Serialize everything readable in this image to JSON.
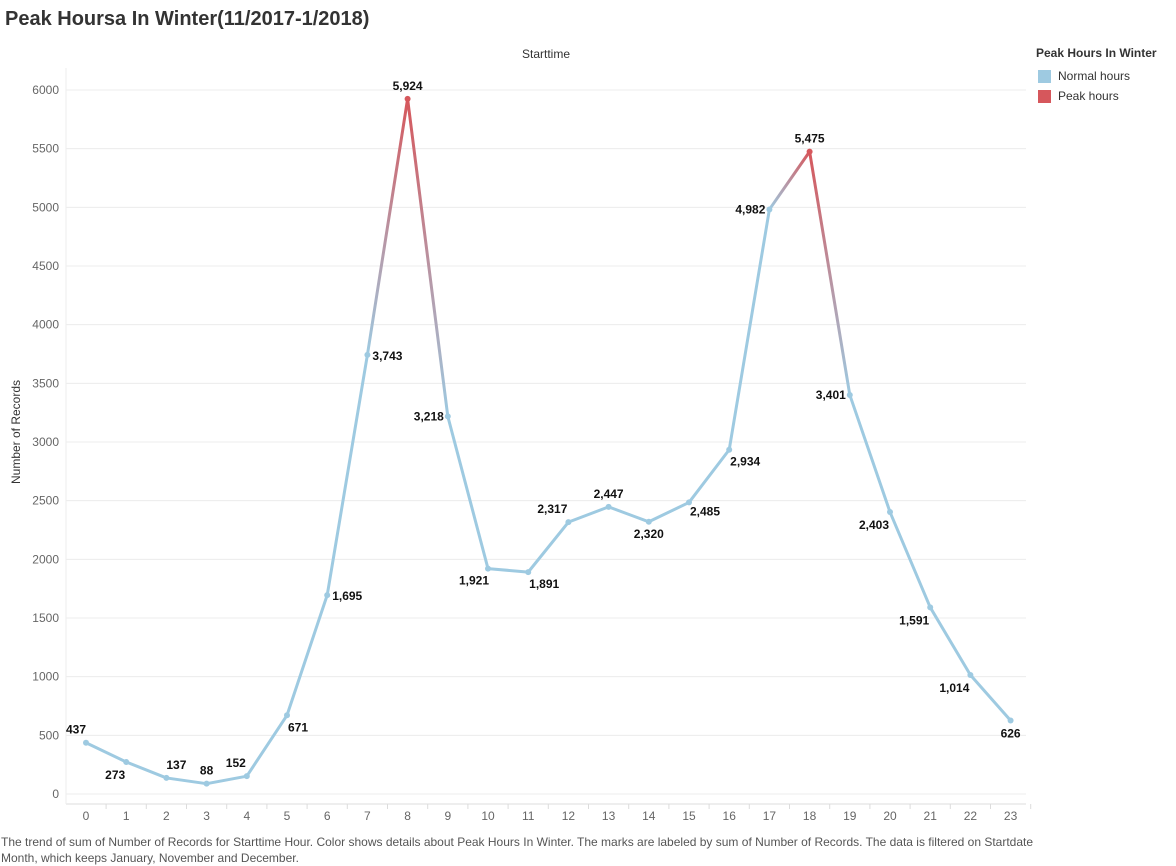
{
  "title": "Peak Hoursa In Winter(11/2017-1/2018)",
  "legend": {
    "title": "Peak Hours In Winter",
    "items": [
      {
        "label": "Normal hours",
        "color": "#9ecae1"
      },
      {
        "label": "Peak hours",
        "color": "#d6575c"
      }
    ]
  },
  "caption": "The trend of sum of Number of Records for Starttime Hour.  Color shows details about Peak Hours In Winter.  The marks are labeled by sum of Number of Records. The data is filtered on Startdate Month, which keeps January, November and December.",
  "chart_data": {
    "type": "line",
    "title": "Peak Hoursa In Winter(11/2017-1/2018)",
    "xlabel": "Starttime",
    "ylabel": "Number of Records",
    "x": [
      0,
      1,
      2,
      3,
      4,
      5,
      6,
      7,
      8,
      9,
      10,
      11,
      12,
      13,
      14,
      15,
      16,
      17,
      18,
      19,
      20,
      21,
      22,
      23
    ],
    "values": [
      437,
      273,
      137,
      88,
      152,
      671,
      1695,
      3743,
      5924,
      3218,
      1921,
      1891,
      2317,
      2447,
      2320,
      2485,
      2934,
      4982,
      5475,
      3401,
      2403,
      1591,
      1014,
      626
    ],
    "labels": [
      "437",
      "273",
      "137",
      "88",
      "152",
      "671",
      "1,695",
      "3,743",
      "5,924",
      "3,218",
      "1,921",
      "1,891",
      "2,317",
      "2,447",
      "2,320",
      "2,485",
      "2,934",
      "4,982",
      "5,475",
      "3,401",
      "2,403",
      "1,591",
      "1,014",
      "626"
    ],
    "peak_hours": [
      8,
      18
    ],
    "yticks": [
      0,
      500,
      1000,
      1500,
      2000,
      2500,
      3000,
      3500,
      4000,
      4500,
      5000,
      5500,
      6000
    ],
    "ylim": [
      0,
      6250
    ],
    "grid": true,
    "legend_position": "top-right"
  }
}
